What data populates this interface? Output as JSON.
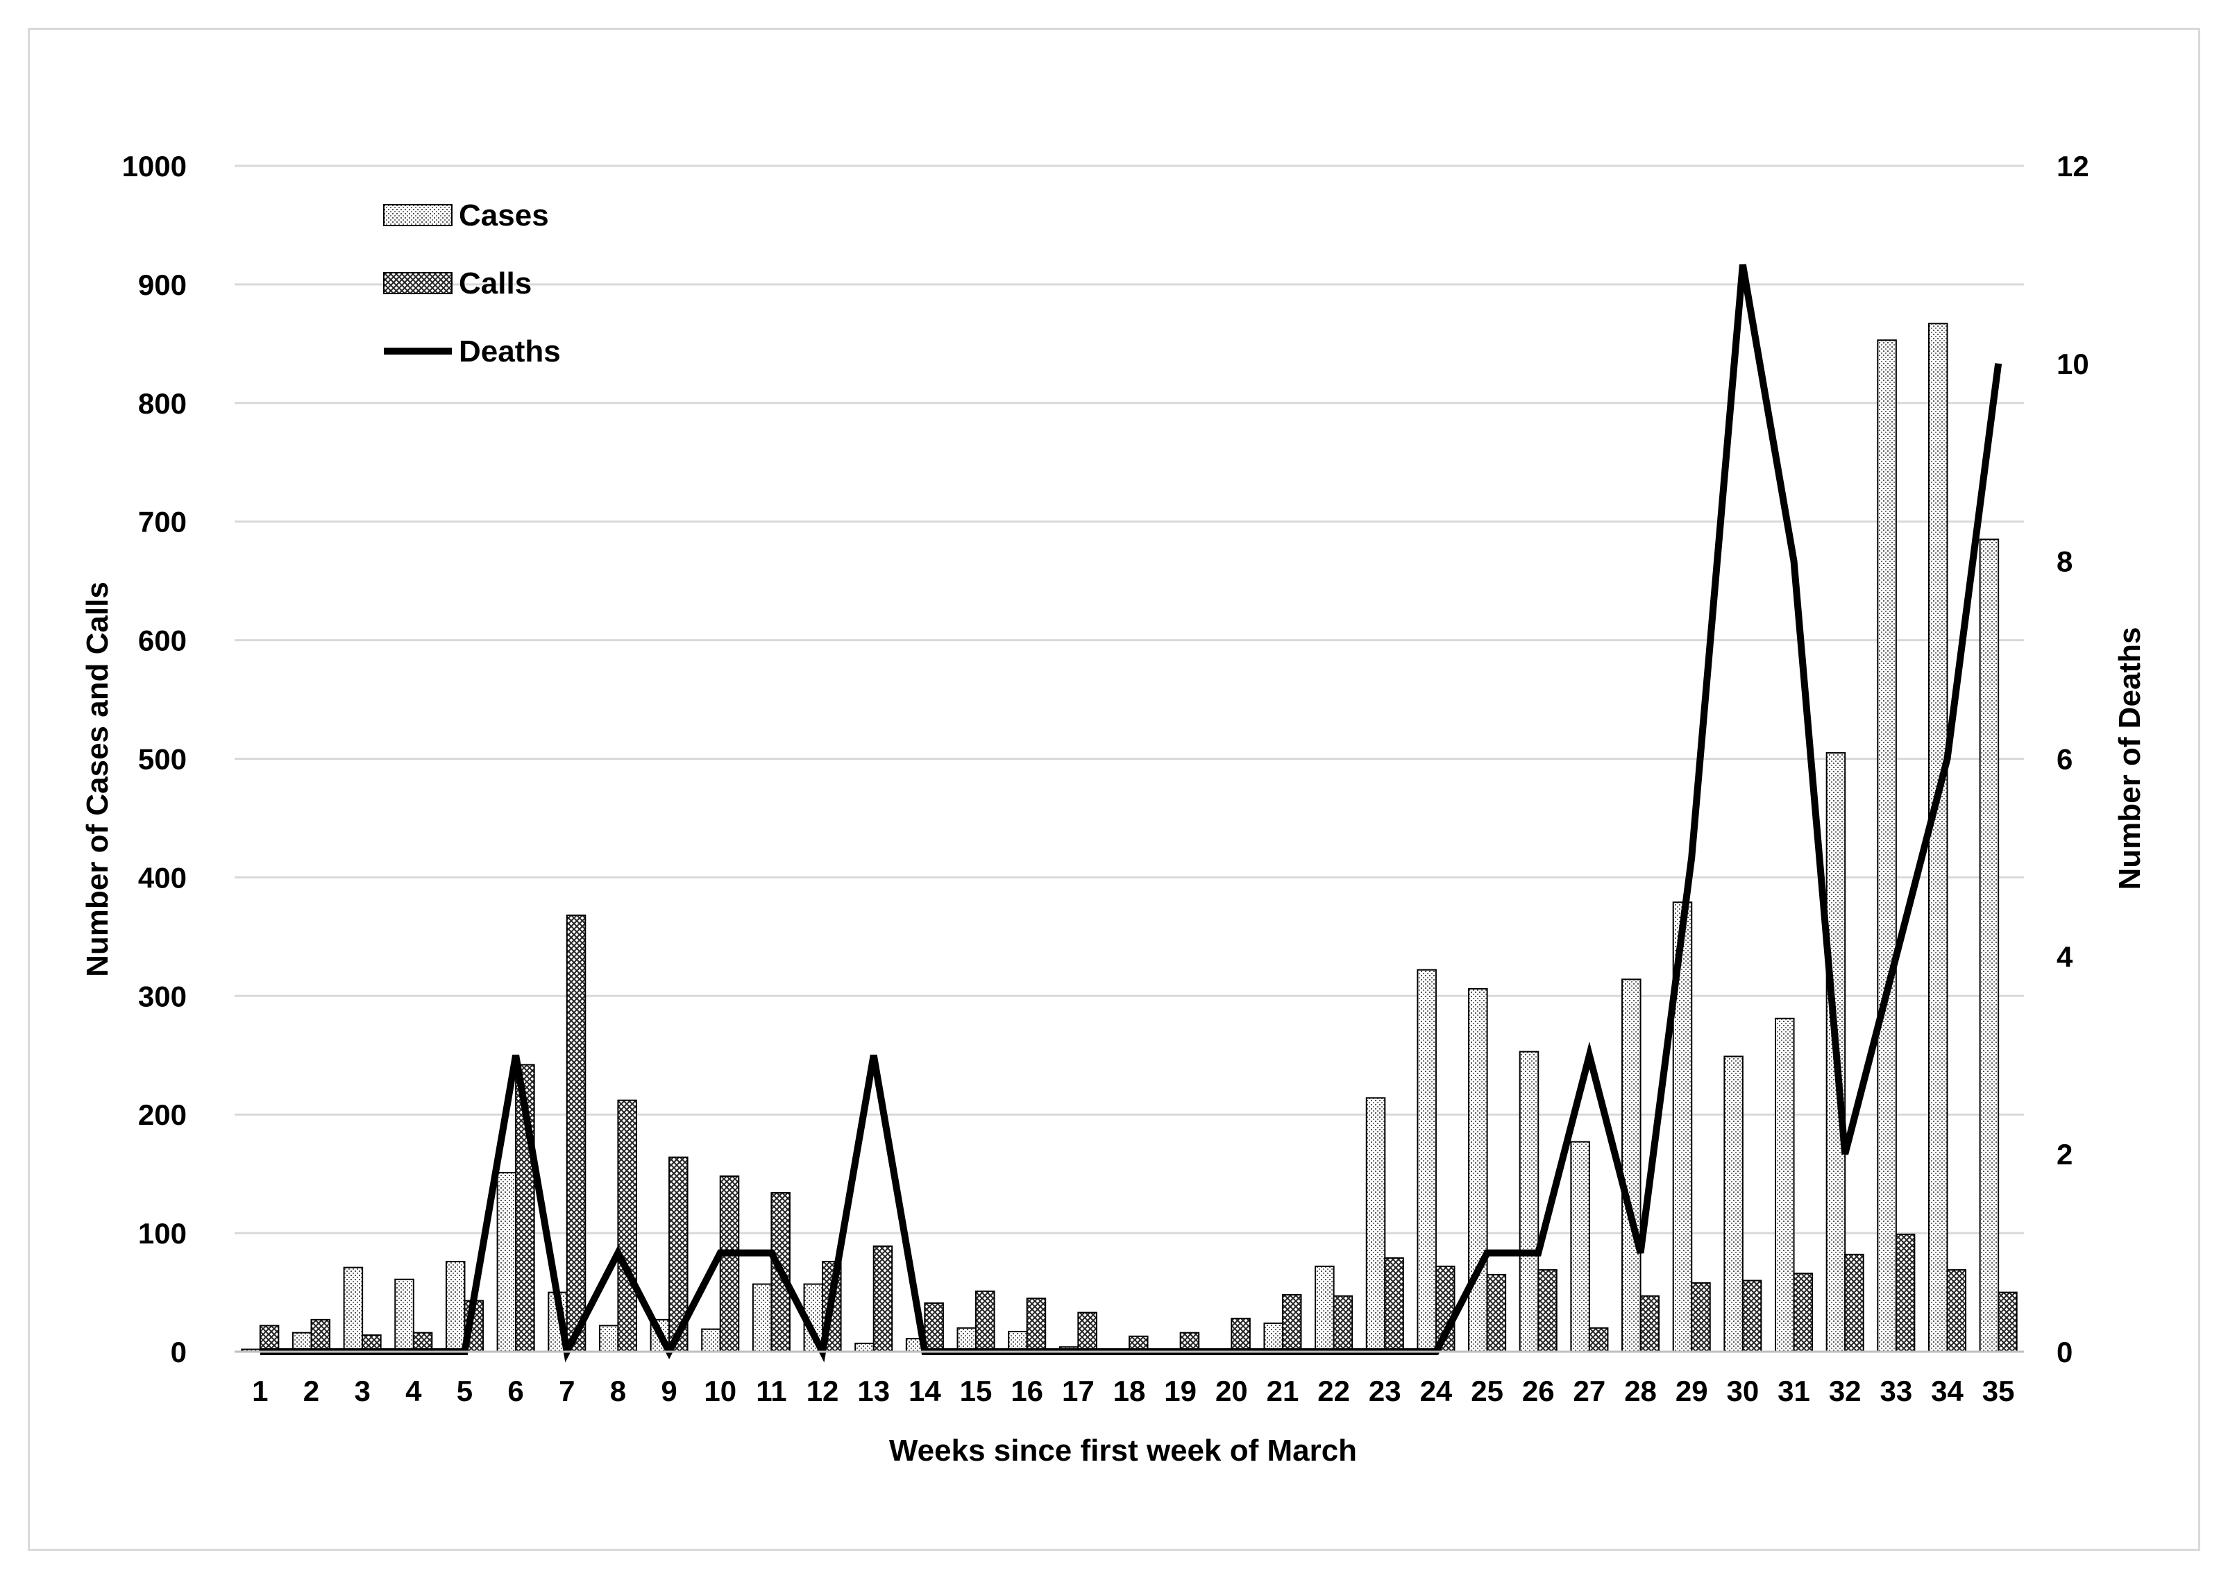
{
  "chart_data": {
    "type": "bar",
    "title": "",
    "xlabel": "Weeks since first week of March",
    "ylabel": "Number of Cases and Calls",
    "ylabel_right": "Number of Deaths",
    "ylim": [
      0,
      1000
    ],
    "ylim_right": [
      0,
      12
    ],
    "yticks": [
      "0",
      "100",
      "200",
      "300",
      "400",
      "500",
      "600",
      "700",
      "800",
      "900",
      "1000"
    ],
    "yticks_right": [
      "0",
      "2",
      "4",
      "6",
      "8",
      "10",
      "12"
    ],
    "categories": [
      "1",
      "2",
      "3",
      "4",
      "5",
      "6",
      "7",
      "8",
      "9",
      "10",
      "11",
      "12",
      "13",
      "14",
      "15",
      "16",
      "17",
      "18",
      "19",
      "20",
      "21",
      "22",
      "23",
      "24",
      "25",
      "26",
      "27",
      "28",
      "29",
      "30",
      "31",
      "32",
      "33",
      "34",
      "35"
    ],
    "grid": true,
    "legend_position": "top-left",
    "series": [
      {
        "name": "Cases",
        "type": "bar",
        "axis": "left",
        "color": "#d0d0d0",
        "values": [
          2,
          16,
          71,
          61,
          76,
          151,
          50,
          22,
          27,
          19,
          57,
          57,
          7,
          11,
          20,
          17,
          4,
          0,
          0,
          0,
          24,
          72,
          214,
          322,
          306,
          253,
          177,
          314,
          379,
          249,
          281,
          505,
          853,
          867,
          685
        ]
      },
      {
        "name": "Calls",
        "type": "bar",
        "axis": "left",
        "color": "#707070",
        "values": [
          22,
          27,
          14,
          16,
          43,
          242,
          368,
          212,
          164,
          148,
          134,
          76,
          89,
          41,
          51,
          45,
          33,
          13,
          16,
          28,
          48,
          47,
          79,
          72,
          65,
          69,
          20,
          47,
          58,
          60,
          66,
          82,
          99,
          69,
          50
        ]
      },
      {
        "name": "Deaths",
        "type": "line",
        "axis": "right",
        "color": "#000000",
        "values": [
          0,
          0,
          0,
          0,
          0,
          3,
          0,
          1,
          0,
          1,
          1,
          0,
          3,
          0,
          0,
          0,
          0,
          0,
          0,
          0,
          0,
          0,
          0,
          0,
          1,
          1,
          3,
          1,
          5,
          11,
          8,
          2,
          4,
          6,
          10
        ]
      }
    ]
  }
}
